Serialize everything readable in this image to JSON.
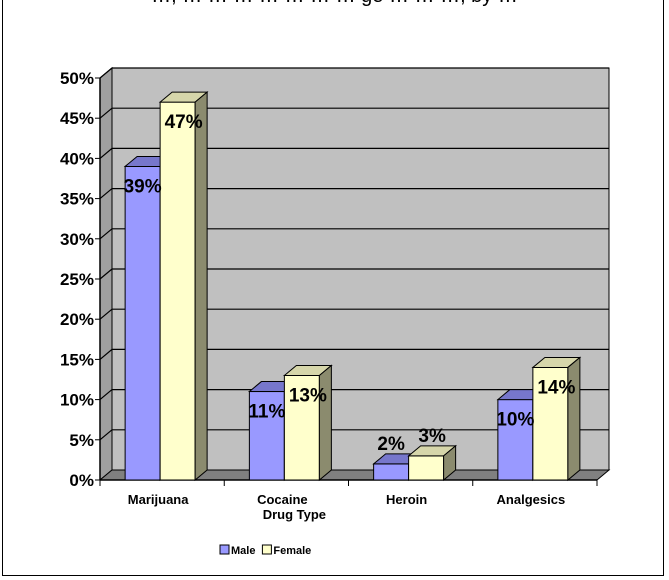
{
  "title_partial": "…, … … … … … … … ge … … …, by …",
  "chart_data": {
    "type": "bar",
    "categories": [
      "Marijuana",
      "Cocaine",
      "Heroin",
      "Analgesics"
    ],
    "series": [
      {
        "name": "Male",
        "values": [
          39,
          11,
          2,
          10
        ],
        "labels": [
          "39%",
          "11%",
          "2%",
          "10%"
        ],
        "color": "#9999ff",
        "side": "#555588",
        "top": "#7777cc"
      },
      {
        "name": "Female",
        "values": [
          47,
          13,
          3,
          14
        ],
        "labels": [
          "47%",
          "13%",
          "3%",
          "14%"
        ],
        "color": "#ffffcc",
        "side": "#8b8b6e",
        "top": "#d6d6aa"
      }
    ],
    "xlabel": "Drug Type",
    "ylabel": "",
    "ylim": [
      0,
      50
    ],
    "yticks": [
      "0%",
      "5%",
      "10%",
      "15%",
      "20%",
      "25%",
      "30%",
      "35%",
      "40%",
      "45%",
      "50%"
    ],
    "grid": true,
    "legend": "bottom-left",
    "wall_color": "#c0c0c0",
    "floor_color": "#808080"
  }
}
